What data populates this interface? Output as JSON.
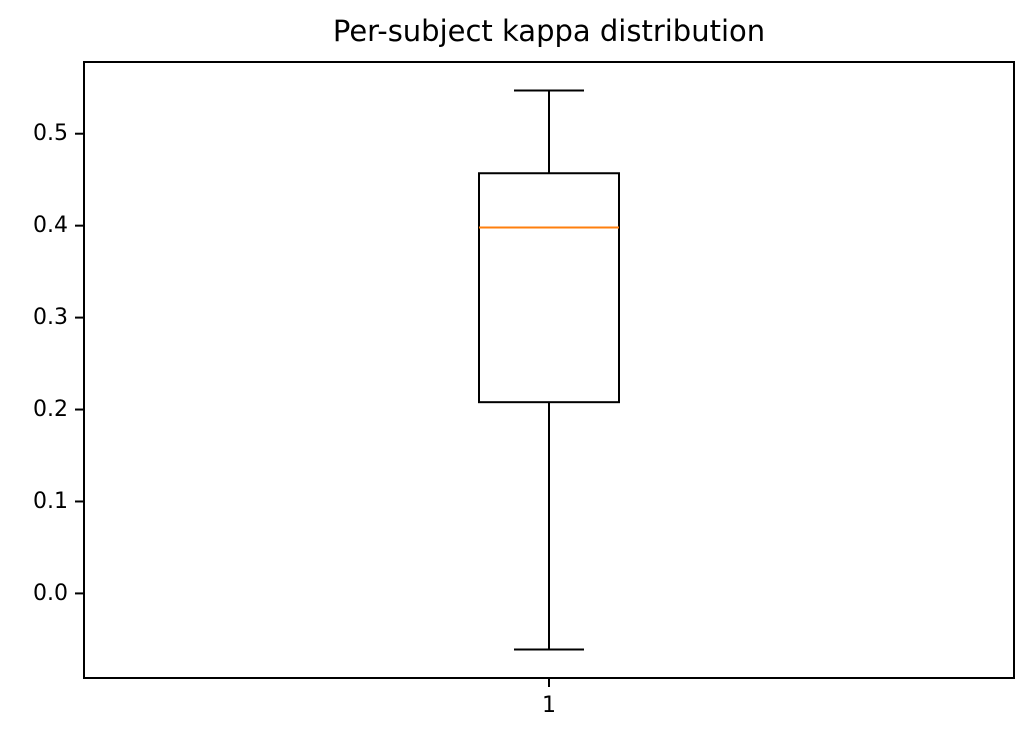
{
  "chart_data": {
    "type": "box",
    "title": "Per-subject kappa distribution",
    "xlabel": "",
    "ylabel": "",
    "categories": [
      "1"
    ],
    "boxes": [
      {
        "category": "1",
        "whisker_low": -0.061,
        "q1": 0.208,
        "median": 0.398,
        "q3": 0.457,
        "whisker_high": 0.547
      }
    ],
    "ylim": [
      -0.092,
      0.578
    ],
    "yticks": [
      0.0,
      0.1,
      0.2,
      0.3,
      0.4,
      0.5
    ],
    "ytick_labels": [
      "0.0",
      "0.1",
      "0.2",
      "0.3",
      "0.4",
      "0.5"
    ],
    "grid": false,
    "legend": "none",
    "colors": {
      "box": "#000000",
      "median": "#ff7f0e",
      "axes": "#000000",
      "background": "#ffffff"
    }
  }
}
